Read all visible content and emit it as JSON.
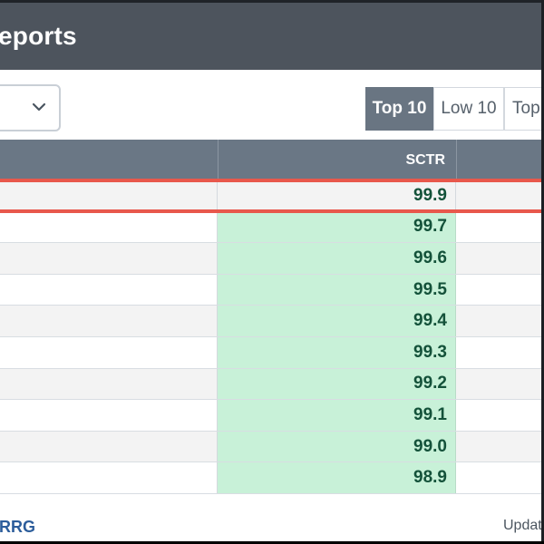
{
  "header": {
    "title": "eports"
  },
  "toolbar": {
    "select": {
      "icon": "chevron-down-icon"
    },
    "tabs": [
      {
        "label": "Top 10",
        "active": true
      },
      {
        "label": "Low 10",
        "active": false
      },
      {
        "label": "Top U",
        "active": false
      }
    ]
  },
  "table": {
    "columns": [
      "",
      "SCTR",
      ""
    ],
    "rows": [
      {
        "sctr": "99.9",
        "highlighted": true
      },
      {
        "sctr": "99.7"
      },
      {
        "sctr": "99.6"
      },
      {
        "sctr": "99.5"
      },
      {
        "sctr": "99.4"
      },
      {
        "sctr": "99.3"
      },
      {
        "sctr": "99.2"
      },
      {
        "sctr": "99.1"
      },
      {
        "sctr": "99.0"
      },
      {
        "sctr": "98.9"
      }
    ]
  },
  "footer": {
    "link": "RRG",
    "updated": "Update"
  },
  "colors": {
    "header_bg": "#4d545d",
    "table_header_bg": "#6a7785",
    "sctr_cell_bg": "#c8f1d8",
    "sctr_text": "#14523a",
    "highlight_border": "#e8584c",
    "active_tab_bg": "#697582",
    "link": "#2c5d9b"
  }
}
